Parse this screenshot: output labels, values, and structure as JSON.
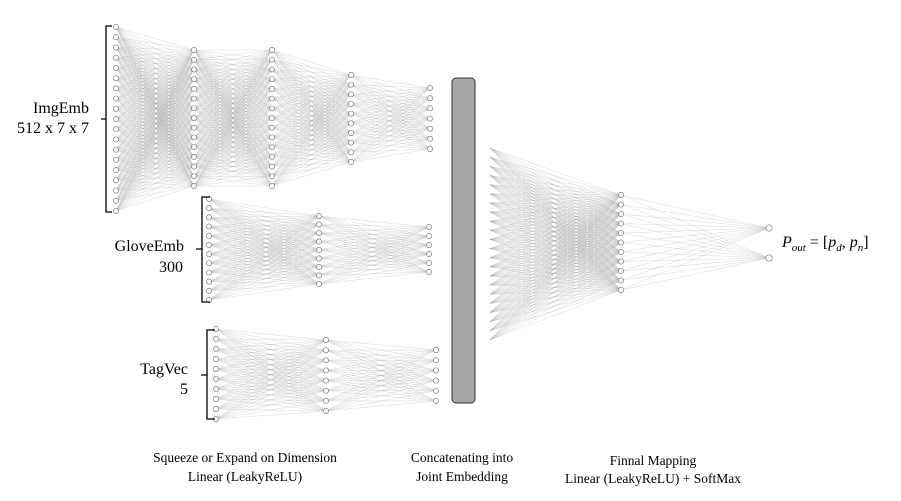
{
  "inputs": {
    "img": {
      "name": "ImgEmb",
      "dim": "512 x 7 x 7"
    },
    "glove": {
      "name": "GloveEmb",
      "dim": "300"
    },
    "tag": {
      "name": "TagVec",
      "dim": "5"
    }
  },
  "output": {
    "prefix": "P",
    "prefix_sub": "out",
    "equals": " = [",
    "p1": "p",
    "p1_sub": "d",
    "comma": ", ",
    "p2": "p",
    "p2_sub": "n",
    "close": "]"
  },
  "captions": {
    "squeeze_line1": "Squeeze or Expand on Dimension",
    "squeeze_line2": "Linear (LeakyReLU)",
    "concat_line1": "Concatenating into",
    "concat_line2": "Joint Embedding",
    "final_line1": "Finnal Mapping",
    "final_line2": "Linear (LeakyReLU) + SoftMax"
  },
  "colors": {
    "bar_fill": "#a6a6a6",
    "edge": "#9a9a9a",
    "node_stroke": "#7a7a7a"
  }
}
